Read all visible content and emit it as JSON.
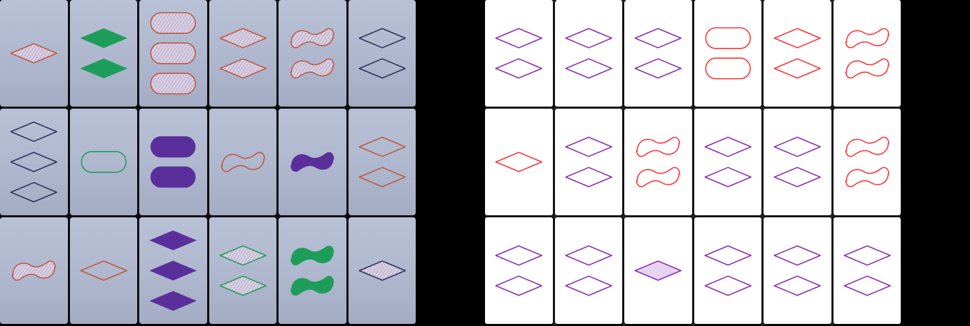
{
  "colors": {
    "orange": "#c0563e",
    "green": "#1e9d5a",
    "purple": "#5a2f9c",
    "navy": "#2a2f5a",
    "violet": "#8a2bb0",
    "red": "#ff3030",
    "light_violet": "#e6d3ee"
  },
  "photo_board": {
    "cards": [
      {
        "count": 1,
        "shape": "diamond",
        "color": "orange",
        "fill": "striped"
      },
      {
        "count": 2,
        "shape": "diamond",
        "color": "green",
        "fill": "solid"
      },
      {
        "count": 3,
        "shape": "oval",
        "color": "orange",
        "fill": "striped"
      },
      {
        "count": 2,
        "shape": "diamond",
        "color": "orange",
        "fill": "striped"
      },
      {
        "count": 2,
        "shape": "squiggle",
        "color": "orange",
        "fill": "striped"
      },
      {
        "count": 2,
        "shape": "diamond",
        "color": "navy",
        "fill": "empty"
      },
      {
        "count": 3,
        "shape": "diamond",
        "color": "navy",
        "fill": "empty"
      },
      {
        "count": 1,
        "shape": "oval",
        "color": "green",
        "fill": "empty"
      },
      {
        "count": 2,
        "shape": "oval",
        "color": "purple",
        "fill": "solid"
      },
      {
        "count": 1,
        "shape": "squiggle",
        "color": "orange",
        "fill": "empty"
      },
      {
        "count": 1,
        "shape": "squiggle",
        "color": "purple",
        "fill": "solid"
      },
      {
        "count": 2,
        "shape": "diamond",
        "color": "orange",
        "fill": "empty"
      },
      {
        "count": 1,
        "shape": "squiggle",
        "color": "orange",
        "fill": "striped"
      },
      {
        "count": 1,
        "shape": "diamond",
        "color": "orange",
        "fill": "empty"
      },
      {
        "count": 3,
        "shape": "diamond",
        "color": "purple",
        "fill": "solid"
      },
      {
        "count": 2,
        "shape": "diamond",
        "color": "green",
        "fill": "striped"
      },
      {
        "count": 2,
        "shape": "squiggle",
        "color": "green",
        "fill": "solid"
      },
      {
        "count": 1,
        "shape": "diamond",
        "color": "navy",
        "fill": "striped"
      }
    ]
  },
  "render_board": {
    "cards": [
      {
        "count": 2,
        "shape": "diamond",
        "color": "violet",
        "fill": "empty"
      },
      {
        "count": 2,
        "shape": "diamond",
        "color": "violet",
        "fill": "empty"
      },
      {
        "count": 2,
        "shape": "diamond",
        "color": "violet",
        "fill": "empty"
      },
      {
        "count": 2,
        "shape": "oval",
        "color": "red",
        "fill": "empty"
      },
      {
        "count": 2,
        "shape": "diamond",
        "color": "red",
        "fill": "empty"
      },
      {
        "count": 2,
        "shape": "squiggle",
        "color": "red",
        "fill": "empty"
      },
      {
        "count": 1,
        "shape": "diamond",
        "color": "red",
        "fill": "empty"
      },
      {
        "count": 2,
        "shape": "diamond",
        "color": "violet",
        "fill": "empty"
      },
      {
        "count": 2,
        "shape": "squiggle",
        "color": "red",
        "fill": "empty"
      },
      {
        "count": 2,
        "shape": "diamond",
        "color": "violet",
        "fill": "empty"
      },
      {
        "count": 2,
        "shape": "diamond",
        "color": "violet",
        "fill": "empty"
      },
      {
        "count": 2,
        "shape": "squiggle",
        "color": "red",
        "fill": "empty"
      },
      {
        "count": 2,
        "shape": "diamond",
        "color": "violet",
        "fill": "empty"
      },
      {
        "count": 2,
        "shape": "diamond",
        "color": "violet",
        "fill": "empty"
      },
      {
        "count": 1,
        "shape": "diamond",
        "color": "violet",
        "fill": "shaded"
      },
      {
        "count": 2,
        "shape": "diamond",
        "color": "violet",
        "fill": "empty"
      },
      {
        "count": 2,
        "shape": "diamond",
        "color": "violet",
        "fill": "empty"
      },
      {
        "count": 2,
        "shape": "diamond",
        "color": "violet",
        "fill": "empty"
      }
    ]
  }
}
